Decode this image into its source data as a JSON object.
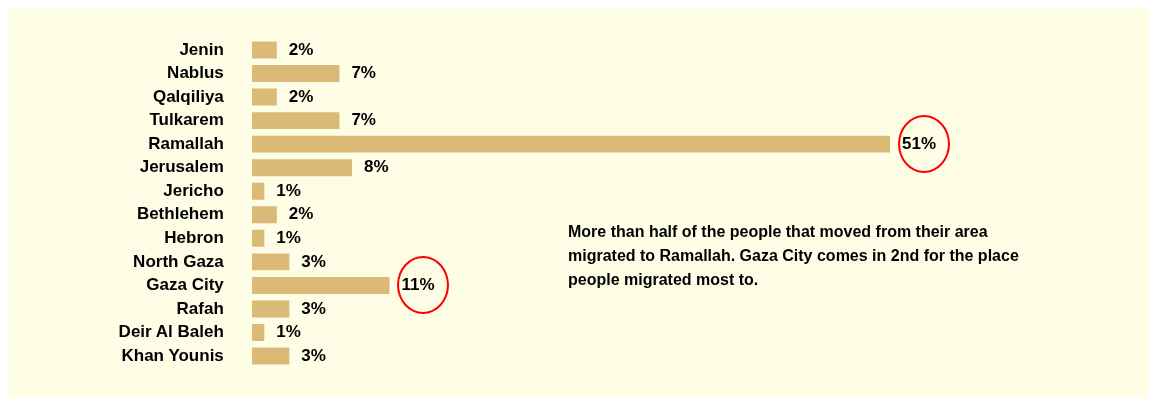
{
  "chart_data": {
    "type": "bar",
    "orientation": "horizontal",
    "categories": [
      "Jenin",
      "Nablus",
      "Qalqiliya",
      "Tulkarem",
      "Ramallah",
      "Jerusalem",
      "Jericho",
      "Bethlehem",
      "Hebron",
      "North Gaza",
      "Gaza City",
      "Rafah",
      "Deir Al Baleh",
      "Khan Younis"
    ],
    "values": [
      2,
      7,
      2,
      7,
      51,
      8,
      1,
      2,
      1,
      3,
      11,
      3,
      1,
      3
    ],
    "value_labels": [
      "2%",
      "7%",
      "2%",
      "7%",
      "51%",
      "8%",
      "1%",
      "2%",
      "1%",
      "3%",
      "11%",
      "3%",
      "1%",
      "3%"
    ],
    "color": "#dbb977",
    "legend": false,
    "annotations": [
      "More than half of the people that moved from their area migrated to Ramallah. Gaza City comes in 2nd for the place people migrated most to."
    ]
  }
}
